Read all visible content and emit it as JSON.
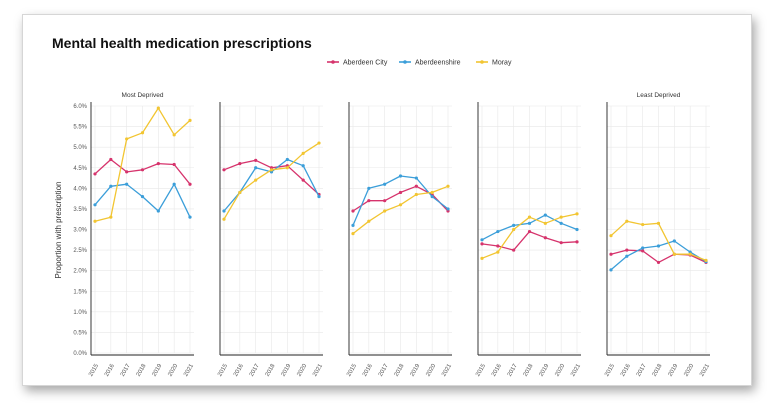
{
  "chart_data": {
    "type": "line",
    "title": "Mental health medication prescriptions",
    "ylabel": "Proportion with prescription",
    "ylim": [
      0,
      6
    ],
    "yticks": [
      "0.0%",
      "0.5%",
      "1.0%",
      "1.5%",
      "2.0%",
      "2.5%",
      "3.0%",
      "3.5%",
      "4.0%",
      "4.5%",
      "5.0%",
      "5.5%",
      "6.0%"
    ],
    "x": [
      "2015",
      "2016",
      "2017",
      "2018",
      "2019",
      "2020",
      "2021"
    ],
    "legend_position": "top",
    "grid": true,
    "series_colors": {
      "Aberdeen City": "#d6336c",
      "Aberdeenshire": "#3b9ed9",
      "Moray": "#f2c531"
    },
    "panels": [
      {
        "label": "Most Deprived",
        "series": [
          {
            "name": "Aberdeen City",
            "values": [
              4.35,
              4.7,
              4.4,
              4.45,
              4.6,
              4.58,
              4.1
            ]
          },
          {
            "name": "Aberdeenshire",
            "values": [
              3.6,
              4.05,
              4.1,
              3.8,
              3.45,
              4.1,
              3.3
            ]
          },
          {
            "name": "Moray",
            "values": [
              3.2,
              3.3,
              5.2,
              5.35,
              5.95,
              5.3,
              5.65
            ]
          }
        ]
      },
      {
        "label": "",
        "series": [
          {
            "name": "Aberdeen City",
            "values": [
              4.45,
              4.6,
              4.68,
              4.5,
              4.55,
              4.2,
              3.85
            ]
          },
          {
            "name": "Aberdeenshire",
            "values": [
              3.45,
              3.9,
              4.5,
              4.4,
              4.7,
              4.55,
              3.8
            ]
          },
          {
            "name": "Moray",
            "values": [
              3.25,
              3.9,
              4.2,
              4.45,
              4.5,
              4.85,
              5.1
            ]
          }
        ]
      },
      {
        "label": "",
        "series": [
          {
            "name": "Aberdeen City",
            "values": [
              3.45,
              3.7,
              3.7,
              3.9,
              4.05,
              3.85,
              3.45
            ]
          },
          {
            "name": "Aberdeenshire",
            "values": [
              3.1,
              4.0,
              4.1,
              4.3,
              4.25,
              3.8,
              3.5
            ]
          },
          {
            "name": "Moray",
            "values": [
              2.9,
              3.2,
              3.45,
              3.6,
              3.85,
              3.9,
              4.05
            ]
          }
        ]
      },
      {
        "label": "",
        "series": [
          {
            "name": "Aberdeen City",
            "values": [
              2.65,
              2.6,
              2.5,
              2.95,
              2.8,
              2.68,
              2.7
            ]
          },
          {
            "name": "Aberdeenshire",
            "values": [
              2.75,
              2.95,
              3.1,
              3.15,
              3.35,
              3.15,
              3.0
            ]
          },
          {
            "name": "Moray",
            "values": [
              2.3,
              2.45,
              3.0,
              3.3,
              3.15,
              3.3,
              3.38
            ]
          }
        ]
      },
      {
        "label": "Least Deprived",
        "series": [
          {
            "name": "Aberdeen City",
            "values": [
              2.4,
              2.5,
              2.48,
              2.2,
              2.4,
              2.38,
              2.2
            ]
          },
          {
            "name": "Aberdeenshire",
            "values": [
              2.02,
              2.35,
              2.55,
              2.6,
              2.72,
              2.45,
              2.22
            ]
          },
          {
            "name": "Moray",
            "values": [
              2.85,
              3.2,
              3.12,
              3.15,
              2.4,
              2.4,
              2.25
            ]
          }
        ]
      }
    ]
  }
}
